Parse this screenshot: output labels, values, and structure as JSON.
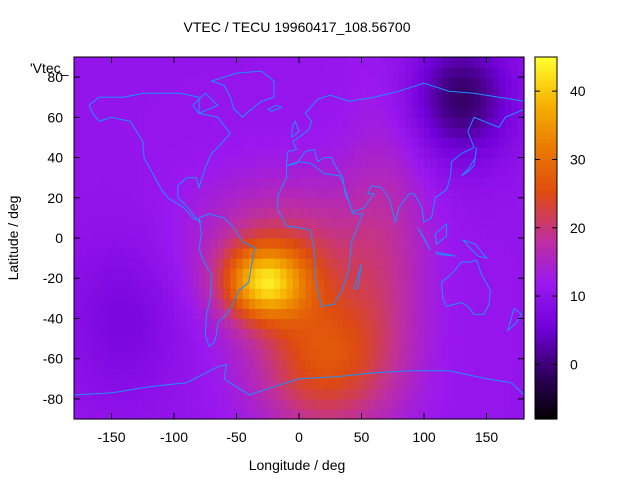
{
  "chart_data": {
    "type": "heatmap",
    "title": "VTEC / TECU 19960417_108.56700",
    "xlabel": "Longitude / deg",
    "ylabel": "Latitude / deg",
    "series_key": "'Vtec_",
    "xlim": [
      -180,
      180
    ],
    "ylim": [
      -90,
      90
    ],
    "xticks": [
      -150,
      -100,
      -50,
      0,
      50,
      100,
      150
    ],
    "yticks": [
      -80,
      -60,
      -40,
      -20,
      0,
      20,
      40,
      60,
      80
    ],
    "colorbar": {
      "min": -8,
      "max": 45,
      "ticks": [
        0,
        10,
        20,
        30,
        40
      ]
    },
    "colormap": [
      "#000000",
      "#30005e",
      "#7000d8",
      "#9a18ef",
      "#c0309a",
      "#de4a10",
      "#ea7a00",
      "#f6b400",
      "#ffff30"
    ],
    "grid": false,
    "coastline_color": "#1e90ff",
    "field_model": {
      "background": 11,
      "features": [
        {
          "lon": -28,
          "lat": -22,
          "amp": 23,
          "sx": 32,
          "sy": 18
        },
        {
          "lon": -10,
          "lat": -5,
          "amp": 9,
          "sx": 70,
          "sy": 35
        },
        {
          "lon": 20,
          "lat": -60,
          "amp": 15,
          "sx": 55,
          "sy": 38
        },
        {
          "lon": 70,
          "lat": 0,
          "amp": 5,
          "sx": 35,
          "sy": 70
        },
        {
          "lon": 130,
          "lat": 70,
          "amp": -12,
          "sx": 40,
          "sy": 30
        },
        {
          "lon": -140,
          "lat": -40,
          "amp": -4,
          "sx": 45,
          "sy": 40
        }
      ]
    }
  }
}
